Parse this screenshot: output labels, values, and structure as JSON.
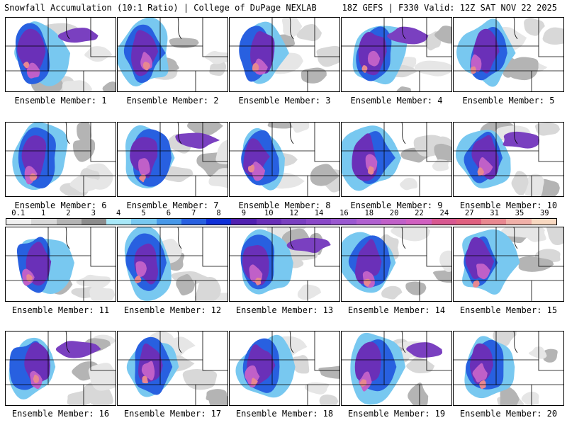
{
  "header": {
    "title": "Snowfall Accumulation (10:1 Ratio) | College of DuPage NEXLAB",
    "valid": "18Z GEFS | F330 Valid: 12Z SAT NOV 22 2025"
  },
  "colorbar": {
    "levels": [
      "0.1",
      "1",
      "2",
      "3",
      "4",
      "5",
      "6",
      "7",
      "8",
      "9",
      "10",
      "12",
      "14",
      "16",
      "18",
      "20",
      "22",
      "24",
      "27",
      "31",
      "35",
      "39"
    ],
    "colors": [
      "#f0f0f0",
      "#d8d8d8",
      "#b4b4b4",
      "#8c8c8c",
      "#a8e8f8",
      "#78c8f0",
      "#4898e8",
      "#2860e0",
      "#1030d8",
      "#5020b0",
      "#6a30b8",
      "#7a40c0",
      "#8a48c8",
      "#9a58d0",
      "#b060d0",
      "#c060c8",
      "#d060c0",
      "#d85890",
      "#e06080",
      "#e88890",
      "#f0b0a8",
      "#f8d8c0"
    ]
  },
  "members": [
    {
      "label": "Ensemble Member: 1"
    },
    {
      "label": "Ensemble Member: 2"
    },
    {
      "label": "Ensemble Member: 3"
    },
    {
      "label": "Ensemble Member: 4"
    },
    {
      "label": "Ensemble Member: 5"
    },
    {
      "label": "Ensemble Member: 6"
    },
    {
      "label": "Ensemble Member: 7"
    },
    {
      "label": "Ensemble Member: 8"
    },
    {
      "label": "Ensemble Member: 9"
    },
    {
      "label": "Ensemble Member: 10"
    },
    {
      "label": "Ensemble Member: 11"
    },
    {
      "label": "Ensemble Member: 12"
    },
    {
      "label": "Ensemble Member: 13"
    },
    {
      "label": "Ensemble Member: 14"
    },
    {
      "label": "Ensemble Member: 15"
    },
    {
      "label": "Ensemble Member: 16"
    },
    {
      "label": "Ensemble Member: 17"
    },
    {
      "label": "Ensemble Member: 18"
    },
    {
      "label": "Ensemble Member: 19"
    },
    {
      "label": "Ensemble Member: 20"
    }
  ]
}
